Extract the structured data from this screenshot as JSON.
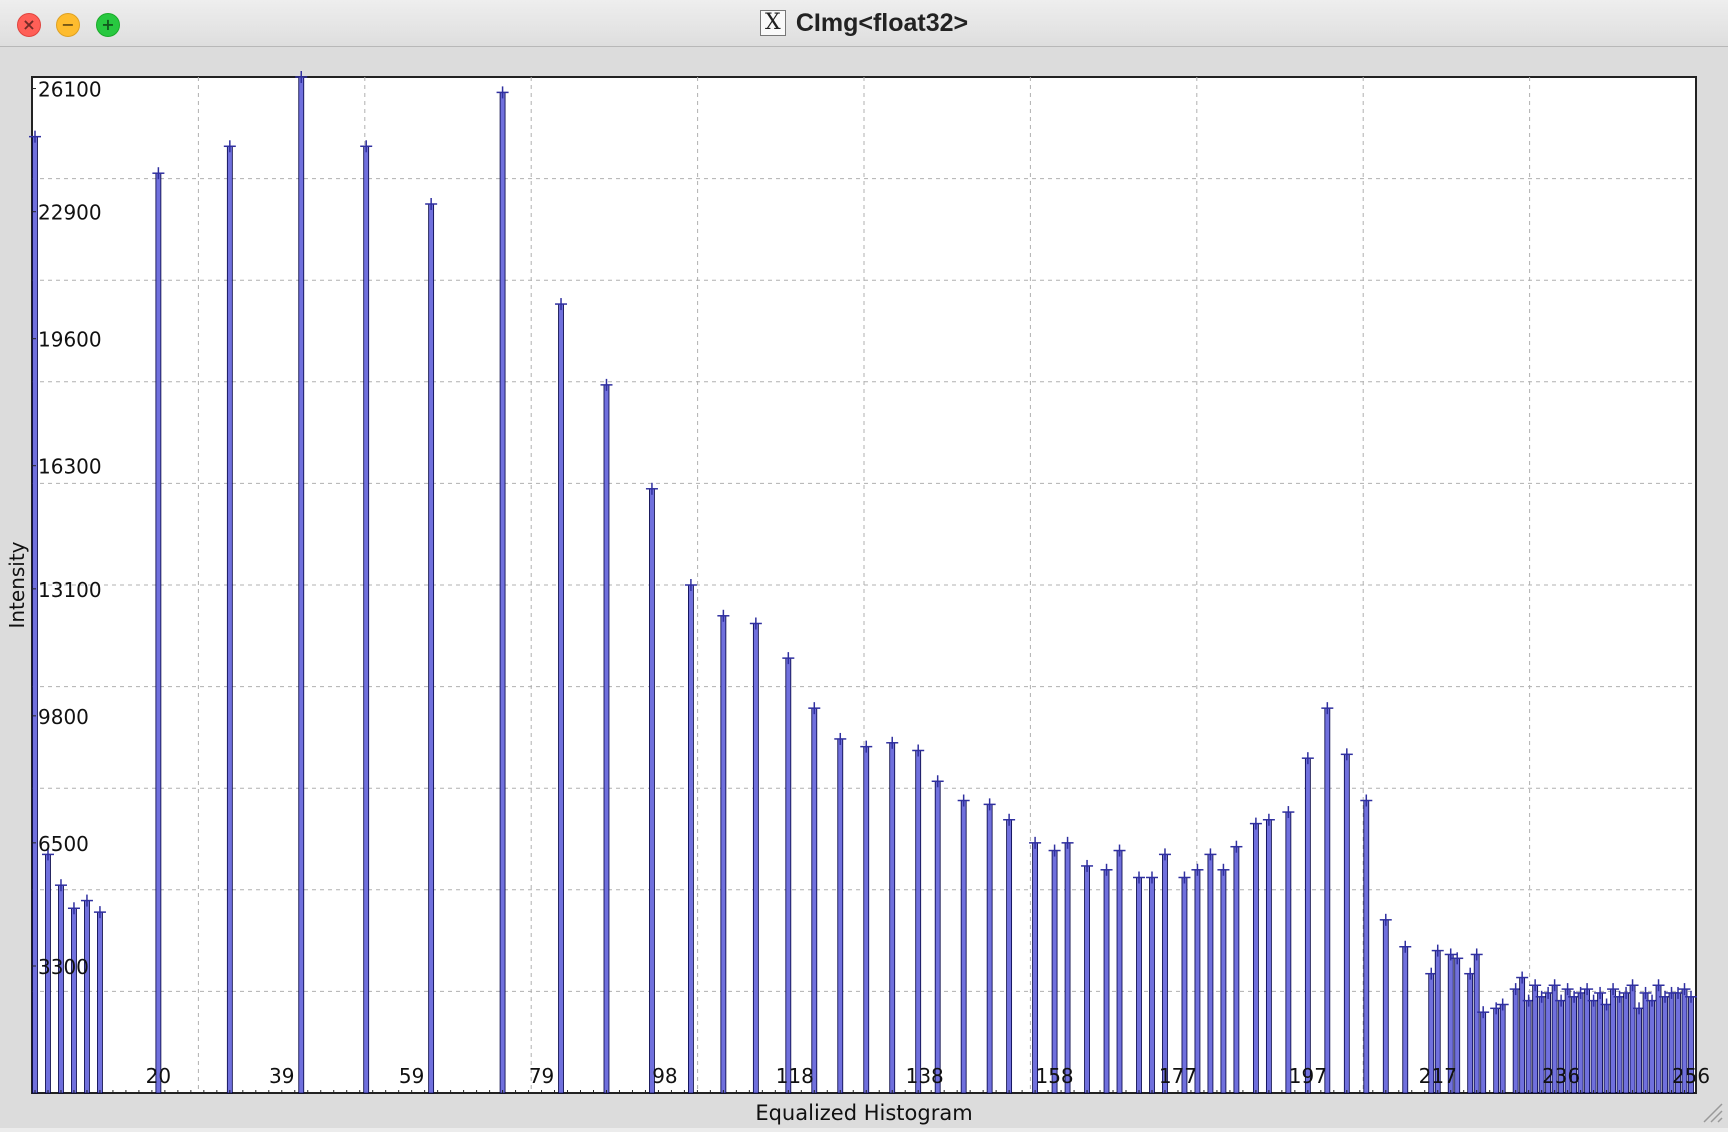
{
  "window": {
    "title": "CImg<float32>"
  },
  "chart_data": {
    "type": "bar",
    "xlabel": "Equalized Histogram",
    "ylabel": "Intensity",
    "x_ticks": [
      "20",
      "39",
      "59",
      "79",
      "98",
      "118",
      "138",
      "158",
      "177",
      "197",
      "217",
      "236",
      "256"
    ],
    "y_ticks": [
      "26100",
      "22900",
      "19600",
      "16300",
      "13100",
      "9800",
      "6500",
      "3300"
    ],
    "ylim": [
      0,
      26400
    ],
    "xlim": [
      1,
      256
    ],
    "grid": true,
    "colors": {
      "bar": "#7070dd",
      "bar_edge": "#000040",
      "grid": "#b0b0b0"
    },
    "x": [
      1,
      3,
      5,
      7,
      9,
      11,
      20,
      31,
      42,
      52,
      62,
      73,
      82,
      89,
      96,
      102,
      107,
      112,
      117,
      121,
      125,
      129,
      133,
      137,
      140,
      144,
      148,
      151,
      155,
      158,
      160,
      163,
      166,
      168,
      171,
      173,
      175,
      178,
      180,
      182,
      184,
      186,
      189,
      191,
      194,
      197,
      200,
      203,
      206,
      209,
      212,
      216,
      217,
      219,
      220,
      222,
      223,
      224,
      226,
      227,
      229,
      230,
      231,
      232,
      233,
      234,
      235,
      236,
      237,
      238,
      239,
      240,
      241,
      242,
      243,
      244,
      245,
      246,
      247,
      248,
      249,
      250,
      251,
      252,
      253,
      254,
      255,
      256
    ],
    "values": [
      24850,
      6200,
      5400,
      4800,
      5000,
      4700,
      23900,
      24600,
      26400,
      24600,
      23100,
      26000,
      20500,
      18400,
      15700,
      13200,
      12400,
      12200,
      11300,
      10000,
      9200,
      9000,
      9100,
      8900,
      8100,
      7600,
      7500,
      7100,
      6500,
      6300,
      6500,
      5900,
      5800,
      6300,
      5600,
      5600,
      6200,
      5600,
      5800,
      6200,
      5800,
      6400,
      7000,
      7100,
      7300,
      8700,
      10000,
      8800,
      7600,
      4500,
      3800,
      3100,
      3700,
      3600,
      3500,
      3100,
      3600,
      2100,
      2200,
      2300,
      2700,
      3000,
      2400,
      2800,
      2500,
      2600,
      2800,
      2400,
      2700,
      2500,
      2600,
      2700,
      2400,
      2600,
      2300,
      2700,
      2500,
      2600,
      2800,
      2200,
      2600,
      2400,
      2800,
      2500,
      2600,
      2600,
      2700,
      2500
    ]
  }
}
